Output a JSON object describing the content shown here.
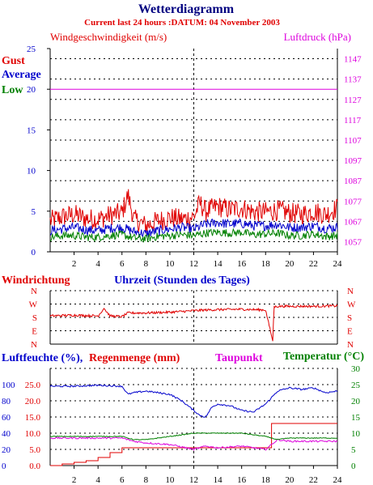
{
  "header": {
    "title": "Wetterdiagramm",
    "subtitle": "Current last 24 hours :DATUM: 04 November 2003"
  },
  "colors": {
    "red": "#e00000",
    "blue": "#0000cc",
    "green": "#008000",
    "magenta": "#dd00dd",
    "title": "#000080",
    "grid": "#000000"
  },
  "chart_data": [
    {
      "type": "line",
      "id": "wind",
      "left_label": "Windgeschwindigkeit (m/s)",
      "right_label": "Luftdruck (hPa)",
      "legend": [
        "Gust",
        "Average",
        "Low"
      ],
      "x_ticks": [
        2,
        4,
        6,
        8,
        10,
        12,
        14,
        16,
        18,
        20,
        22,
        24
      ],
      "xlim": [
        0,
        24
      ],
      "y_ticks": [
        0,
        5,
        10,
        15,
        20,
        25
      ],
      "ylim": [
        0,
        25
      ],
      "y2_ticks": [
        1057,
        1067,
        1077,
        1087,
        1097,
        1107,
        1117,
        1127,
        1137,
        1147
      ],
      "y2lim": [
        1052,
        1152
      ],
      "series": [
        {
          "name": "Gust",
          "axis": "left",
          "color": "#e00000",
          "x": [
            0,
            1,
            2,
            3,
            4,
            5,
            6,
            6.5,
            7,
            8,
            9,
            10,
            11,
            12,
            12.5,
            13,
            14,
            15,
            16,
            17,
            18,
            19,
            20,
            21,
            22,
            23,
            24
          ],
          "values": [
            3.8,
            4.3,
            4.6,
            4.1,
            4.0,
            4.5,
            4.8,
            7.0,
            4.0,
            3.2,
            3.8,
            4.2,
            4.0,
            4.3,
            6.0,
            5.0,
            5.6,
            5.2,
            5.4,
            4.9,
            4.9,
            5.1,
            4.8,
            4.6,
            5.0,
            4.6,
            5.4
          ]
        },
        {
          "name": "Average",
          "axis": "left",
          "color": "#0000cc",
          "x": [
            0,
            1,
            2,
            3,
            4,
            5,
            6,
            7,
            8,
            9,
            10,
            11,
            12,
            13,
            14,
            15,
            16,
            17,
            18,
            19,
            20,
            21,
            22,
            23,
            24
          ],
          "values": [
            2.6,
            2.8,
            3.0,
            2.7,
            2.6,
            2.9,
            3.0,
            2.5,
            2.2,
            2.6,
            2.8,
            3.0,
            2.8,
            3.4,
            3.6,
            3.4,
            3.5,
            3.2,
            3.2,
            3.4,
            3.0,
            3.0,
            3.2,
            2.9,
            3.0
          ]
        },
        {
          "name": "Low",
          "axis": "left",
          "color": "#008000",
          "x": [
            0,
            1,
            2,
            3,
            4,
            5,
            6,
            7,
            8,
            9,
            10,
            11,
            12,
            13,
            14,
            15,
            16,
            17,
            18,
            19,
            20,
            21,
            22,
            23,
            24
          ],
          "values": [
            1.8,
            2.0,
            2.0,
            1.8,
            1.8,
            2.0,
            2.1,
            1.7,
            1.6,
            1.9,
            2.0,
            2.1,
            2.0,
            2.3,
            2.4,
            2.3,
            2.4,
            2.1,
            2.2,
            2.3,
            2.0,
            2.0,
            2.2,
            1.9,
            2.0
          ]
        },
        {
          "name": "Luftdruck",
          "axis": "right",
          "color": "#dd00dd",
          "x": [
            0,
            24
          ],
          "values": [
            1132,
            1132
          ]
        }
      ]
    },
    {
      "type": "line",
      "id": "direction",
      "left_label": "Windrichtung",
      "center_label": "Uhrzeit (Stunden des Tages)",
      "y_labels": [
        "N",
        "W",
        "S",
        "E",
        "N"
      ],
      "xlim": [
        0,
        24
      ],
      "series": [
        {
          "name": "Windrichtung",
          "color": "#e00000",
          "x": [
            0,
            2,
            4,
            4.5,
            5,
            6,
            6.5,
            8,
            10,
            12,
            13,
            14,
            16,
            18,
            18.6,
            18.7,
            19,
            20,
            22,
            24
          ],
          "values": [
            190,
            195,
            190,
            240,
            190,
            185,
            210,
            210,
            215,
            225,
            230,
            232,
            235,
            230,
            20,
            250,
            255,
            255,
            255,
            258
          ]
        }
      ]
    },
    {
      "type": "line",
      "id": "humidity",
      "left_label": "Luftfeuchte (%),",
      "left_label2": "Regenmenge (mm)",
      "center_label": "Taupunkt",
      "right_label": "Temperatur (°C)",
      "y_ticks": [
        0,
        20,
        40,
        60,
        80,
        100
      ],
      "y_ticks_rain": [
        "0.0",
        "5.0",
        "10.0",
        "15.0",
        "20.0",
        "25.0"
      ],
      "y2_ticks": [
        0,
        5,
        10,
        15,
        20,
        25,
        30
      ],
      "xlim": [
        0,
        24
      ],
      "ylim": [
        0,
        30
      ],
      "series": [
        {
          "name": "Luftfeuchte",
          "color": "#0000cc",
          "x": [
            0,
            2,
            4,
            6,
            6.5,
            7,
            8,
            10,
            11,
            12,
            12.5,
            13,
            13.5,
            14,
            15,
            16,
            17,
            18,
            19,
            20,
            21,
            22,
            23,
            24
          ],
          "values": [
            24.5,
            24.5,
            24.8,
            24.5,
            22,
            22.5,
            23,
            22,
            20,
            17,
            15.5,
            15,
            18,
            19,
            18.5,
            17,
            16.5,
            19,
            23,
            24,
            23.5,
            24,
            22.5,
            23
          ]
        },
        {
          "name": "Regenmenge",
          "color": "#e00000",
          "x": [
            0,
            1,
            2,
            3,
            4,
            5,
            6,
            7,
            8,
            12,
            18,
            18.5,
            19,
            24
          ],
          "values": [
            0,
            0.5,
            1,
            1.5,
            2.5,
            4,
            5.5,
            5.5,
            5.5,
            5.5,
            5.5,
            13,
            13,
            13
          ]
        },
        {
          "name": "Taupunkt",
          "color": "#dd00dd",
          "x": [
            0,
            4,
            6,
            7,
            8,
            10,
            12,
            13,
            14,
            16,
            18,
            19,
            20,
            22,
            24
          ],
          "values": [
            8.5,
            8.5,
            8.5,
            7.5,
            7,
            6.5,
            5,
            6,
            5.5,
            6,
            5,
            8,
            7.5,
            7.5,
            7.5
          ]
        },
        {
          "name": "Temperatur",
          "color": "#008000",
          "x": [
            0,
            4,
            6,
            7,
            8,
            10,
            12,
            13,
            14,
            16,
            18,
            19,
            20,
            22,
            24
          ],
          "values": [
            9,
            9,
            9,
            8,
            8,
            9,
            10,
            10,
            10,
            10,
            9,
            8,
            8.5,
            8.5,
            8.5
          ]
        }
      ]
    }
  ]
}
